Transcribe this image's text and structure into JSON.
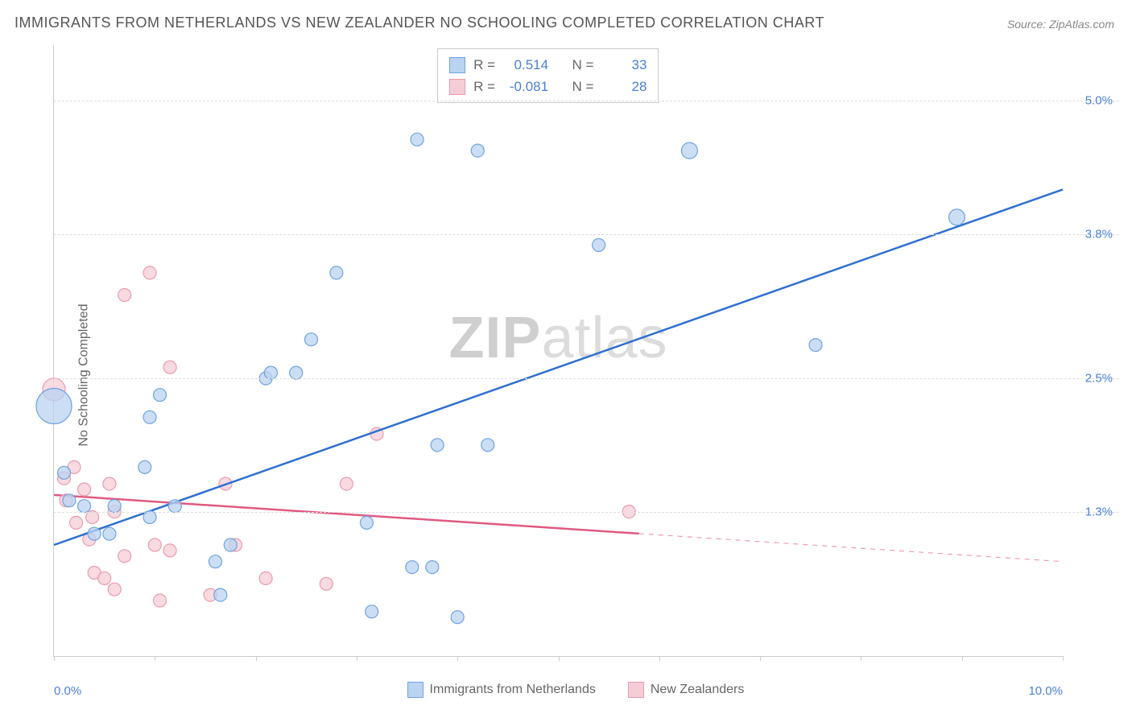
{
  "title": "IMMIGRANTS FROM NETHERLANDS VS NEW ZEALANDER NO SCHOOLING COMPLETED CORRELATION CHART",
  "source": "Source: ZipAtlas.com",
  "watermark_bold": "ZIP",
  "watermark_rest": "atlas",
  "ylabel": "No Schooling Completed",
  "chart": {
    "type": "scatter",
    "xlim": [
      0,
      10
    ],
    "ylim": [
      0,
      5.5
    ],
    "xtick_positions": [
      0,
      1,
      2,
      3,
      4,
      5,
      6,
      7,
      8,
      9,
      10
    ],
    "xtick_labels": {
      "0": "0.0%",
      "10": "10.0%"
    },
    "ytick_positions": [
      1.3,
      2.5,
      3.8,
      5.0
    ],
    "ytick_labels": [
      "1.3%",
      "2.5%",
      "3.8%",
      "5.0%"
    ],
    "background_color": "#ffffff",
    "grid_color": "#dddddd",
    "axis_color": "#cccccc",
    "tick_label_color": "#4a7fd8",
    "label_color": "#666666",
    "title_color": "#555555",
    "title_fontsize": 18,
    "label_fontsize": 16,
    "tick_fontsize": 15
  },
  "series": {
    "blue": {
      "name": "Immigrants from Netherlands",
      "fill": "#b9d3f0",
      "stroke": "#6fa3e0",
      "line_color": "#2f6fd0",
      "r_label": "R =",
      "r_value": "0.514",
      "n_label": "N =",
      "n_value": "33",
      "trend": {
        "x1": 0,
        "y1": 1.0,
        "x2": 10,
        "y2": 4.2,
        "solid_until_x": 10
      },
      "points": [
        {
          "x": 0.0,
          "y": 2.25,
          "r": 22
        },
        {
          "x": 0.1,
          "y": 1.65,
          "r": 8
        },
        {
          "x": 0.15,
          "y": 1.4,
          "r": 8
        },
        {
          "x": 0.3,
          "y": 1.35,
          "r": 8
        },
        {
          "x": 0.4,
          "y": 1.1,
          "r": 8
        },
        {
          "x": 0.55,
          "y": 1.1,
          "r": 8
        },
        {
          "x": 0.6,
          "y": 1.35,
          "r": 8
        },
        {
          "x": 0.9,
          "y": 1.7,
          "r": 8
        },
        {
          "x": 0.95,
          "y": 2.15,
          "r": 8
        },
        {
          "x": 0.95,
          "y": 1.25,
          "r": 8
        },
        {
          "x": 1.2,
          "y": 1.35,
          "r": 8
        },
        {
          "x": 1.05,
          "y": 2.35,
          "r": 8
        },
        {
          "x": 1.6,
          "y": 0.85,
          "r": 8
        },
        {
          "x": 1.65,
          "y": 0.55,
          "r": 8
        },
        {
          "x": 1.75,
          "y": 1.0,
          "r": 8
        },
        {
          "x": 2.1,
          "y": 2.5,
          "r": 8
        },
        {
          "x": 2.15,
          "y": 2.55,
          "r": 8
        },
        {
          "x": 2.4,
          "y": 2.55,
          "r": 8
        },
        {
          "x": 2.55,
          "y": 2.85,
          "r": 8
        },
        {
          "x": 2.8,
          "y": 3.45,
          "r": 8
        },
        {
          "x": 3.1,
          "y": 1.2,
          "r": 8
        },
        {
          "x": 3.15,
          "y": 0.4,
          "r": 8
        },
        {
          "x": 3.55,
          "y": 0.8,
          "r": 8
        },
        {
          "x": 3.6,
          "y": 4.65,
          "r": 8
        },
        {
          "x": 3.75,
          "y": 0.8,
          "r": 8
        },
        {
          "x": 3.8,
          "y": 1.9,
          "r": 8
        },
        {
          "x": 4.0,
          "y": 0.35,
          "r": 8
        },
        {
          "x": 4.2,
          "y": 4.55,
          "r": 8
        },
        {
          "x": 4.3,
          "y": 1.9,
          "r": 8
        },
        {
          "x": 5.4,
          "y": 3.7,
          "r": 8
        },
        {
          "x": 6.3,
          "y": 4.55,
          "r": 10
        },
        {
          "x": 7.55,
          "y": 2.8,
          "r": 8
        },
        {
          "x": 8.95,
          "y": 3.95,
          "r": 10
        }
      ]
    },
    "pink": {
      "name": "New Zealanders",
      "fill": "#f5cdd7",
      "stroke": "#e99bb0",
      "line_color": "#e05a80",
      "r_label": "R =",
      "r_value": "-0.081",
      "n_label": "N =",
      "n_value": "28",
      "trend": {
        "x1": 0,
        "y1": 1.45,
        "x2": 10,
        "y2": 0.85,
        "solid_until_x": 5.8
      },
      "points": [
        {
          "x": 0.0,
          "y": 2.4,
          "r": 14
        },
        {
          "x": 0.1,
          "y": 1.6,
          "r": 8
        },
        {
          "x": 0.12,
          "y": 1.4,
          "r": 8
        },
        {
          "x": 0.2,
          "y": 1.7,
          "r": 8
        },
        {
          "x": 0.22,
          "y": 1.2,
          "r": 8
        },
        {
          "x": 0.3,
          "y": 1.5,
          "r": 8
        },
        {
          "x": 0.35,
          "y": 1.05,
          "r": 8
        },
        {
          "x": 0.38,
          "y": 1.25,
          "r": 8
        },
        {
          "x": 0.4,
          "y": 0.75,
          "r": 8
        },
        {
          "x": 0.5,
          "y": 0.7,
          "r": 8
        },
        {
          "x": 0.55,
          "y": 1.55,
          "r": 8
        },
        {
          "x": 0.6,
          "y": 1.3,
          "r": 8
        },
        {
          "x": 0.6,
          "y": 0.6,
          "r": 8
        },
        {
          "x": 0.7,
          "y": 3.25,
          "r": 8
        },
        {
          "x": 0.7,
          "y": 0.9,
          "r": 8
        },
        {
          "x": 0.95,
          "y": 3.45,
          "r": 8
        },
        {
          "x": 1.0,
          "y": 1.0,
          "r": 8
        },
        {
          "x": 1.05,
          "y": 0.5,
          "r": 8
        },
        {
          "x": 1.15,
          "y": 0.95,
          "r": 8
        },
        {
          "x": 1.15,
          "y": 2.6,
          "r": 8
        },
        {
          "x": 1.55,
          "y": 0.55,
          "r": 8
        },
        {
          "x": 1.7,
          "y": 1.55,
          "r": 8
        },
        {
          "x": 1.8,
          "y": 1.0,
          "r": 8
        },
        {
          "x": 2.1,
          "y": 0.7,
          "r": 8
        },
        {
          "x": 2.7,
          "y": 0.65,
          "r": 8
        },
        {
          "x": 2.9,
          "y": 1.55,
          "r": 8
        },
        {
          "x": 3.2,
          "y": 2.0,
          "r": 8
        },
        {
          "x": 5.7,
          "y": 1.3,
          "r": 8
        }
      ]
    }
  }
}
